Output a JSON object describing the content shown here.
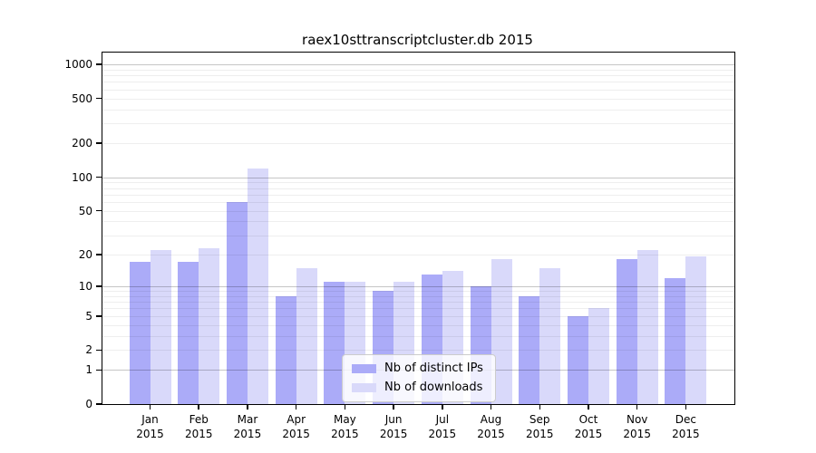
{
  "chart_data": {
    "type": "bar",
    "title": "raex10sttranscriptcluster.db 2015",
    "categories": [
      "Jan",
      "Feb",
      "Mar",
      "Apr",
      "May",
      "Jun",
      "Jul",
      "Aug",
      "Sep",
      "Oct",
      "Nov",
      "Dec"
    ],
    "x_tick_second_line": "2015",
    "series": [
      {
        "name": "Nb of distinct IPs",
        "color": "#ababf8",
        "values": [
          17,
          17,
          60,
          8,
          11,
          9,
          13,
          10,
          8,
          5,
          18,
          12
        ]
      },
      {
        "name": "Nb of downloads",
        "color": "#d9d9fa",
        "values": [
          22,
          23,
          120,
          15,
          11,
          11,
          14,
          18,
          15,
          6,
          22,
          19
        ]
      }
    ],
    "xlabel": "",
    "ylabel": "",
    "y_tick_labels": [
      1000,
      500,
      200,
      100,
      50,
      20,
      10,
      5,
      2,
      1,
      0
    ],
    "scale": "log1p",
    "ylim": [
      0,
      1273
    ],
    "grid": true,
    "legend_position": "lower center",
    "colors": {
      "axis": "#000000",
      "major_grid": "#c6c6c6",
      "minor_grid": "#efefef",
      "background": "#ffffff"
    }
  }
}
